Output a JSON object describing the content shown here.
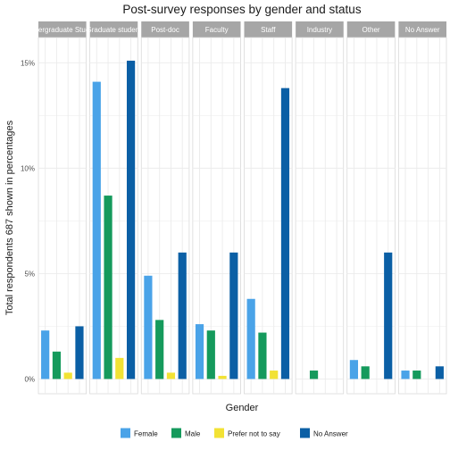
{
  "chart_data": {
    "type": "bar",
    "title": "Post-survey responses by gender and status",
    "xlabel": "Gender",
    "ylabel": "Total respondents 687 shown in percentages",
    "ylim": [
      -0.7,
      16.2
    ],
    "y_ticks": [
      0,
      5,
      10,
      15
    ],
    "y_tick_labels": [
      "0%",
      "5%",
      "10%",
      "15%"
    ],
    "grid": true,
    "legend_position": "bottom",
    "categories": [
      "Female",
      "Male",
      "Prefer not to say",
      "No Answer"
    ],
    "colors": {
      "Female": "#4aa3e8",
      "Male": "#159a5c",
      "Prefer not to say": "#f2e234",
      "No Answer": "#0b5fa5",
      "strip": "#a6a6a6",
      "grid": "#ebebeb",
      "panel_border": "#d9d9d9"
    },
    "legend": [
      "Female",
      "Male",
      "Prefer not to say",
      "No Answer"
    ],
    "facets": [
      {
        "label": "Undergraduate Student",
        "values": [
          2.3,
          1.3,
          0.3,
          2.5
        ]
      },
      {
        "label": "Graduate student",
        "values": [
          14.1,
          8.7,
          1.0,
          15.1
        ]
      },
      {
        "label": "Post-doc",
        "values": [
          4.9,
          2.8,
          0.3,
          6.0
        ]
      },
      {
        "label": "Faculty",
        "values": [
          2.6,
          2.3,
          0.15,
          6.0
        ]
      },
      {
        "label": "Staff",
        "values": [
          3.8,
          2.2,
          0.4,
          13.8
        ]
      },
      {
        "label": "Industry",
        "values": [
          0,
          0.4,
          0,
          0
        ]
      },
      {
        "label": "Other",
        "values": [
          0.9,
          0.6,
          0,
          6.0
        ]
      },
      {
        "label": "No Answer",
        "values": [
          0.4,
          0.4,
          0,
          0.6
        ]
      }
    ]
  }
}
